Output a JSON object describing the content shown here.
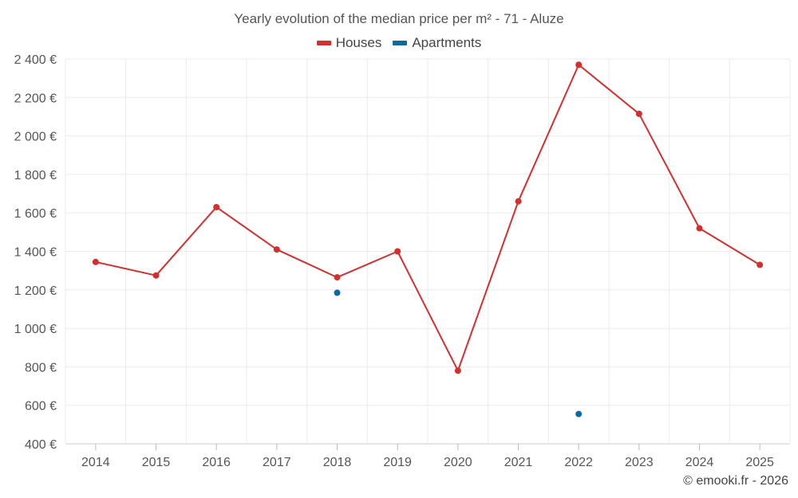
{
  "chart_data": {
    "type": "line",
    "title": "Yearly evolution of the median price per m² - 71 - Aluze",
    "categories": [
      "2014",
      "2015",
      "2016",
      "2017",
      "2018",
      "2019",
      "2020",
      "2021",
      "2022",
      "2023",
      "2024",
      "2025"
    ],
    "series": [
      {
        "name": "Houses",
        "color": "#d32f2f",
        "values": [
          1345,
          1275,
          1630,
          1410,
          1265,
          1400,
          780,
          1660,
          2370,
          2115,
          1520,
          1330
        ]
      },
      {
        "name": "Apartments",
        "color": "#0b6aa2",
        "values": [
          null,
          null,
          null,
          null,
          1185,
          null,
          null,
          null,
          555,
          null,
          null,
          null
        ]
      }
    ],
    "ylim": [
      400,
      2400
    ],
    "yticks": [
      400,
      600,
      800,
      1000,
      1200,
      1400,
      1600,
      1800,
      2000,
      2200,
      2400
    ],
    "ytick_labels": [
      "400 €",
      "600 €",
      "800 €",
      "1 000 €",
      "1 200 €",
      "1 400 €",
      "1 600 €",
      "1 800 €",
      "2 000 €",
      "2 200 €",
      "2 400 €"
    ],
    "grid": true,
    "legend_position": "top-center"
  },
  "credit": "© emooki.fr - 2026"
}
